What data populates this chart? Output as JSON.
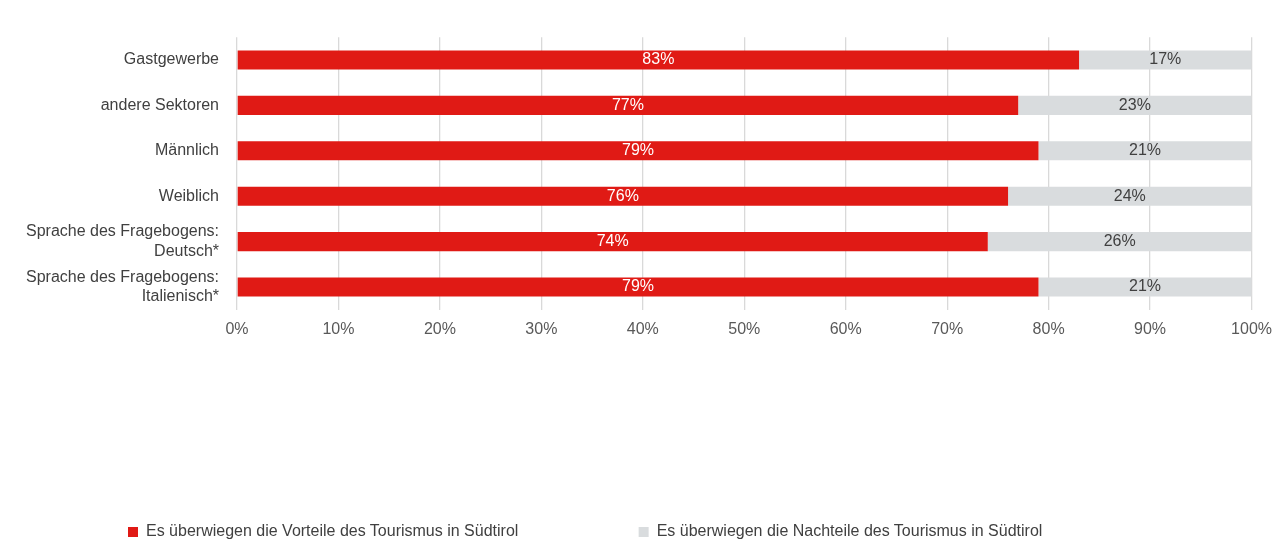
{
  "chart_data": {
    "type": "bar",
    "orientation": "horizontal",
    "stacked": true,
    "categories": [
      "Gastgewerbe",
      "andere Sektoren",
      "Männlich",
      "Weiblich",
      "Sprache des Fragebogens: Deutsch*",
      "Sprache des Fragebogens: Italienisch*"
    ],
    "series": [
      {
        "name": "Es überwiegen die Vorteile des Tourismus in Südtirol",
        "color": "#e01a15",
        "values": [
          83,
          77,
          79,
          76,
          74,
          79
        ],
        "value_labels": [
          "83%",
          "77%",
          "79%",
          "76%",
          "74%",
          "79%"
        ]
      },
      {
        "name": "Es überwiegen die Nachteile des Tourismus in Südtirol",
        "color": "#d9dcde",
        "values": [
          17,
          23,
          21,
          24,
          26,
          21
        ],
        "value_labels": [
          "17%",
          "23%",
          "21%",
          "24%",
          "26%",
          "21%"
        ]
      }
    ],
    "xlim": [
      0,
      100
    ],
    "xticks": [
      {
        "value": 0,
        "label": "0%"
      },
      {
        "value": 10,
        "label": "10%"
      },
      {
        "value": 20,
        "label": "20%"
      },
      {
        "value": 30,
        "label": "30%"
      },
      {
        "value": 40,
        "label": "40%"
      },
      {
        "value": 50,
        "label": "50%"
      },
      {
        "value": 60,
        "label": "60%"
      },
      {
        "value": 70,
        "label": "70%"
      },
      {
        "value": 80,
        "label": "80%"
      },
      {
        "value": 90,
        "label": "90%"
      },
      {
        "value": 100,
        "label": "100%"
      }
    ],
    "grid": "x",
    "legend": "bottom"
  }
}
